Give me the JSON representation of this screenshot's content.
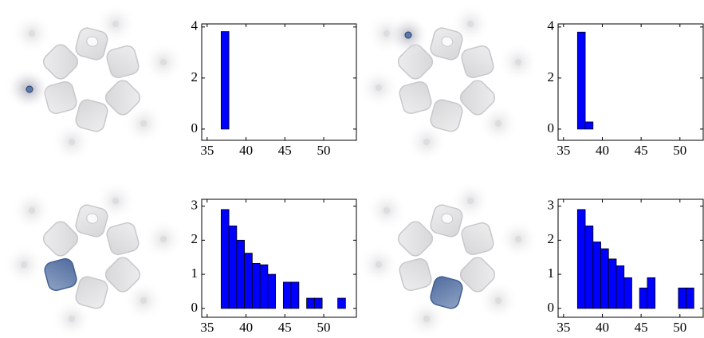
{
  "chart_data": [
    {
      "type": "histogram",
      "color": "#0000ff",
      "bins": [
        36.8,
        37.8,
        38.8,
        39.8,
        40.8,
        41.8,
        42.8,
        43.8,
        44.8,
        45.8,
        46.8,
        47.8,
        48.8,
        49.8,
        50.8,
        51.8,
        52.8
      ],
      "values": [
        3.82,
        0,
        0,
        0,
        0,
        0,
        0,
        0,
        0,
        0,
        0,
        0,
        0,
        0,
        0,
        0
      ],
      "xlim": [
        34.3,
        54.2
      ],
      "xticks": [
        35,
        40,
        45,
        50
      ],
      "ylim": [
        -0.44,
        4.12
      ],
      "yticks": [
        0,
        2,
        4
      ]
    },
    {
      "type": "histogram",
      "color": "#0000ff",
      "bins": [
        36.8,
        37.8,
        38.8,
        39.8,
        40.8,
        41.8,
        42.8,
        43.8,
        44.8,
        45.8,
        46.8,
        47.8,
        48.8,
        49.8,
        50.8,
        51.8,
        52.8
      ],
      "values": [
        3.8,
        0.28,
        0,
        0,
        0,
        0,
        0,
        0,
        0,
        0,
        0,
        0,
        0,
        0,
        0,
        0
      ],
      "xlim": [
        34.3,
        53.0
      ],
      "xticks": [
        35,
        40,
        45,
        50
      ],
      "ylim": [
        -0.44,
        4.12
      ],
      "yticks": [
        0,
        2,
        4
      ]
    },
    {
      "type": "histogram",
      "color": "#0000ff",
      "bins": [
        36.8,
        37.8,
        38.8,
        39.8,
        40.8,
        41.8,
        42.8,
        43.8,
        44.8,
        45.8,
        46.8,
        47.8,
        48.8,
        49.8,
        50.8,
        51.8,
        52.8
      ],
      "values": [
        2.9,
        2.42,
        2.0,
        1.62,
        1.32,
        1.28,
        1.0,
        0,
        0.77,
        0.77,
        0,
        0.3,
        0.3,
        0,
        0,
        0.3
      ],
      "xlim": [
        34.3,
        54.2
      ],
      "xticks": [
        35,
        40,
        45,
        50
      ],
      "ylim": [
        -0.26,
        3.2
      ],
      "yticks": [
        0,
        1,
        2,
        3
      ]
    },
    {
      "type": "histogram",
      "color": "#0000ff",
      "bins": [
        36.8,
        37.8,
        38.8,
        39.8,
        40.8,
        41.8,
        42.8,
        43.8,
        44.8,
        45.8,
        46.8,
        47.8,
        48.8,
        49.8,
        50.8,
        51.8,
        52.8
      ],
      "values": [
        2.9,
        2.42,
        1.95,
        1.75,
        1.45,
        1.25,
        0.9,
        0,
        0.6,
        0.9,
        0,
        0,
        0,
        0.6,
        0.6,
        0
      ],
      "xlim": [
        34.3,
        53.0
      ],
      "xticks": [
        35,
        40,
        45,
        50
      ],
      "ylim": [
        -0.26,
        3.2
      ],
      "yticks": [
        0,
        1,
        2,
        3
      ]
    }
  ]
}
